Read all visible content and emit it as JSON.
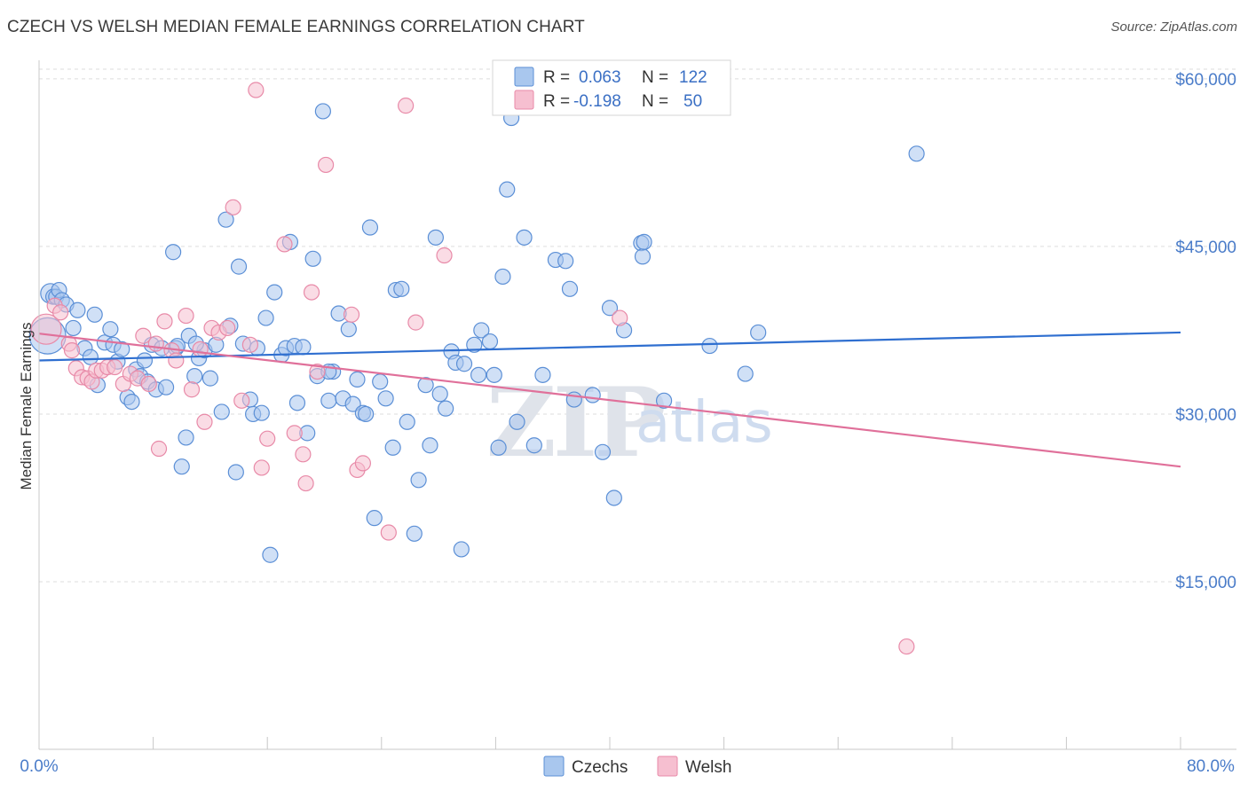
{
  "title": "CZECH VS WELSH MEDIAN FEMALE EARNINGS CORRELATION CHART",
  "source": "Source: ZipAtlas.com",
  "watermark": {
    "zip": "ZIP",
    "atlas": "atlas"
  },
  "colors": {
    "czech_fill": "#a9c7ee",
    "czech_stroke": "#5b8fd6",
    "czech_line": "#2f6fd0",
    "welsh_fill": "#f6bfd0",
    "welsh_stroke": "#e88aa8",
    "welsh_line": "#e0709a",
    "axis_text": "#4a7cc9",
    "grid": "#dddddd"
  },
  "legend": {
    "czech": {
      "r_label": "R =",
      "r_value": "0.063",
      "n_label": "N =",
      "n_value": "122"
    },
    "welsh": {
      "r_label": "R =",
      "r_value": "-0.198",
      "n_label": "N =",
      "n_value": "50"
    }
  },
  "chart_data": {
    "type": "scatter",
    "title": "CZECH VS WELSH MEDIAN FEMALE EARNINGS CORRELATION CHART",
    "xlabel": "",
    "ylabel": "Median Female Earnings",
    "x_tick_labels": [
      "0.0%",
      "80.0%"
    ],
    "y_tick_labels": [
      "$15,000",
      "$30,000",
      "$45,000",
      "$60,000"
    ],
    "y_ticks": [
      15000,
      30000,
      45000,
      60000
    ],
    "xlim": [
      0,
      80
    ],
    "ylim": [
      0,
      61500
    ],
    "grid": true,
    "legend_placement": "top-center",
    "series": [
      {
        "name": "Czechs",
        "r": 0.063,
        "n": 122,
        "trend": {
          "x": [
            0,
            80
          ],
          "y": [
            34800,
            37300
          ]
        },
        "points": [
          [
            0.6,
            37000,
            2.4
          ],
          [
            0.8,
            40800,
            1.3
          ],
          [
            1.0,
            40500,
            1
          ],
          [
            1.2,
            40500,
            1
          ],
          [
            1.4,
            41100,
            1
          ],
          [
            1.6,
            40200,
            1
          ],
          [
            1.9,
            39800,
            1
          ],
          [
            2.4,
            37700,
            1
          ],
          [
            2.7,
            39300,
            1
          ],
          [
            3.2,
            35900,
            1
          ],
          [
            3.6,
            35100,
            1
          ],
          [
            3.9,
            38900,
            1
          ],
          [
            4.1,
            32600,
            1
          ],
          [
            4.6,
            36400,
            1
          ],
          [
            5.0,
            37600,
            1
          ],
          [
            5.2,
            36200,
            1
          ],
          [
            5.5,
            34700,
            1
          ],
          [
            5.8,
            35800,
            1
          ],
          [
            6.2,
            31500,
            1
          ],
          [
            6.5,
            31100,
            1
          ],
          [
            6.8,
            34000,
            1
          ],
          [
            7.1,
            33400,
            1
          ],
          [
            7.4,
            34800,
            1
          ],
          [
            7.6,
            32900,
            1
          ],
          [
            7.9,
            36200,
            1
          ],
          [
            8.2,
            32200,
            1
          ],
          [
            8.6,
            35900,
            1
          ],
          [
            8.9,
            32400,
            1
          ],
          [
            9.4,
            44500,
            1
          ],
          [
            9.6,
            35900,
            1
          ],
          [
            10.0,
            25300,
            1
          ],
          [
            10.3,
            27900,
            1
          ],
          [
            10.5,
            37000,
            1
          ],
          [
            10.9,
            33400,
            1
          ],
          [
            11.2,
            35000,
            1
          ],
          [
            11.6,
            35700,
            1
          ],
          [
            12.0,
            33200,
            1
          ],
          [
            12.4,
            36200,
            1
          ],
          [
            12.8,
            30200,
            1
          ],
          [
            13.1,
            47400,
            1
          ],
          [
            13.4,
            37900,
            1
          ],
          [
            13.8,
            24800,
            1
          ],
          [
            14.0,
            43200,
            1
          ],
          [
            14.3,
            36300,
            1
          ],
          [
            14.8,
            31300,
            1
          ],
          [
            15.0,
            30000,
            1
          ],
          [
            15.3,
            35900,
            1
          ],
          [
            15.6,
            30100,
            1
          ],
          [
            15.9,
            38600,
            1
          ],
          [
            16.2,
            17400,
            1
          ],
          [
            16.5,
            40900,
            1
          ],
          [
            17.0,
            35300,
            1
          ],
          [
            17.3,
            35900,
            1
          ],
          [
            17.6,
            45400,
            1
          ],
          [
            17.9,
            36100,
            1
          ],
          [
            18.1,
            31000,
            1
          ],
          [
            18.5,
            36000,
            1
          ],
          [
            18.8,
            28300,
            1
          ],
          [
            19.2,
            43900,
            1
          ],
          [
            19.5,
            33400,
            1
          ],
          [
            19.9,
            57100,
            1
          ],
          [
            20.3,
            31200,
            1
          ],
          [
            20.6,
            33800,
            1
          ],
          [
            21.0,
            39000,
            1
          ],
          [
            21.3,
            31400,
            1
          ],
          [
            21.7,
            37600,
            1
          ],
          [
            22.0,
            30900,
            1
          ],
          [
            22.3,
            33100,
            1
          ],
          [
            22.7,
            30100,
            1
          ],
          [
            23.2,
            46700,
            1
          ],
          [
            23.5,
            20700,
            1
          ],
          [
            23.9,
            32900,
            1
          ],
          [
            24.3,
            31400,
            1
          ],
          [
            24.8,
            27000,
            1
          ],
          [
            25.0,
            41100,
            1
          ],
          [
            25.4,
            41200,
            1
          ],
          [
            25.8,
            29300,
            1
          ],
          [
            26.3,
            19300,
            1
          ],
          [
            26.6,
            24100,
            1
          ],
          [
            27.1,
            32600,
            1
          ],
          [
            27.4,
            27200,
            1
          ],
          [
            27.8,
            45800,
            1
          ],
          [
            28.1,
            31800,
            1
          ],
          [
            28.5,
            30500,
            1
          ],
          [
            28.9,
            35600,
            1
          ],
          [
            29.2,
            34600,
            1
          ],
          [
            29.6,
            17900,
            1
          ],
          [
            29.8,
            34500,
            1
          ],
          [
            30.5,
            36200,
            1
          ],
          [
            30.8,
            33500,
            1
          ],
          [
            31.0,
            37500,
            1
          ],
          [
            31.6,
            36500,
            1
          ],
          [
            31.9,
            33500,
            1
          ],
          [
            32.2,
            27000,
            1
          ],
          [
            32.5,
            42300,
            1
          ],
          [
            32.8,
            50100,
            1
          ],
          [
            33.1,
            56500,
            1
          ],
          [
            33.5,
            29300,
            1
          ],
          [
            34.0,
            45800,
            1
          ],
          [
            34.7,
            27200,
            1
          ],
          [
            35.3,
            33500,
            1
          ],
          [
            36.2,
            43800,
            1
          ],
          [
            36.9,
            43700,
            1
          ],
          [
            37.2,
            41200,
            1
          ],
          [
            37.5,
            31300,
            1
          ],
          [
            38.8,
            31700,
            1
          ],
          [
            39.5,
            26600,
            1
          ],
          [
            40.0,
            39500,
            1
          ],
          [
            40.3,
            22500,
            1
          ],
          [
            41.0,
            37500,
            1
          ],
          [
            42.2,
            45300,
            1
          ],
          [
            42.3,
            44100,
            1
          ],
          [
            42.4,
            45400,
            1
          ],
          [
            43.8,
            31200,
            1
          ],
          [
            47.0,
            36100,
            1
          ],
          [
            49.5,
            33600,
            1
          ],
          [
            50.4,
            37300,
            1
          ],
          [
            61.5,
            53300,
            1
          ],
          [
            11.0,
            36300,
            1
          ],
          [
            9.7,
            36100,
            1
          ],
          [
            22.9,
            30000,
            1
          ],
          [
            20.3,
            33800,
            1
          ]
        ]
      },
      {
        "name": "Welsh",
        "r": -0.198,
        "n": 50,
        "trend": {
          "x": [
            0,
            80
          ],
          "y": [
            37200,
            25300
          ]
        },
        "points": [
          [
            0.5,
            37600,
            2
          ],
          [
            1.1,
            39700,
            1
          ],
          [
            1.5,
            39100,
            1
          ],
          [
            2.1,
            36300,
            1
          ],
          [
            2.3,
            35700,
            1
          ],
          [
            2.6,
            34100,
            1
          ],
          [
            3.0,
            33300,
            1
          ],
          [
            3.4,
            33200,
            1
          ],
          [
            3.7,
            32900,
            1
          ],
          [
            4.0,
            33900,
            1
          ],
          [
            4.4,
            33900,
            1
          ],
          [
            4.8,
            34200,
            1
          ],
          [
            5.3,
            34200,
            1
          ],
          [
            5.9,
            32700,
            1
          ],
          [
            6.4,
            33600,
            1
          ],
          [
            6.9,
            33200,
            1
          ],
          [
            7.3,
            37000,
            1
          ],
          [
            7.7,
            32700,
            1
          ],
          [
            8.2,
            36300,
            1
          ],
          [
            8.4,
            26900,
            1
          ],
          [
            8.8,
            38300,
            1
          ],
          [
            9.3,
            35700,
            1
          ],
          [
            9.6,
            34800,
            1
          ],
          [
            10.3,
            38800,
            1
          ],
          [
            10.7,
            32200,
            1
          ],
          [
            11.3,
            35800,
            1
          ],
          [
            11.6,
            29300,
            1
          ],
          [
            12.1,
            37700,
            1
          ],
          [
            12.6,
            37300,
            1
          ],
          [
            13.2,
            37700,
            1
          ],
          [
            13.6,
            48500,
            1
          ],
          [
            14.2,
            31200,
            1
          ],
          [
            14.8,
            36200,
            1
          ],
          [
            15.2,
            59000,
            1
          ],
          [
            15.6,
            25200,
            1
          ],
          [
            16.0,
            27800,
            1
          ],
          [
            17.2,
            45200,
            1
          ],
          [
            17.9,
            28300,
            1
          ],
          [
            18.5,
            26400,
            1
          ],
          [
            18.7,
            23800,
            1
          ],
          [
            19.1,
            40900,
            1
          ],
          [
            19.5,
            33800,
            1
          ],
          [
            20.1,
            52300,
            1
          ],
          [
            21.9,
            38900,
            1
          ],
          [
            22.3,
            25000,
            1
          ],
          [
            22.7,
            25600,
            1
          ],
          [
            24.5,
            19400,
            1
          ],
          [
            25.7,
            57600,
            1
          ],
          [
            28.4,
            44200,
            1
          ],
          [
            40.7,
            38600,
            1
          ],
          [
            60.8,
            9200,
            1
          ],
          [
            26.4,
            38200,
            1
          ]
        ]
      }
    ]
  },
  "bottom_legend": [
    "Czechs",
    "Welsh"
  ]
}
